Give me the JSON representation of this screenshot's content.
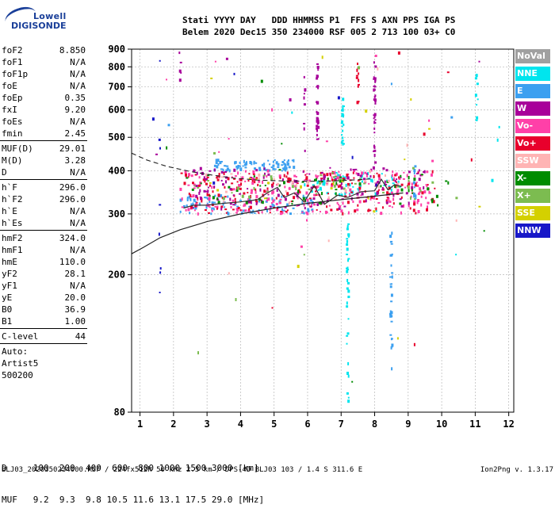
{
  "logo": {
    "line1": "Lowell",
    "line2": "DIGISONDE"
  },
  "header": {
    "line1": "Stati YYYY DAY   DDD HHMMSS P1  FFS S AXN PPS IGA PS",
    "line2": "Belem 2020 Dec15 350 234000 RSF 005 2 713 100 03+ C0"
  },
  "params": {
    "group1": [
      {
        "label": "foF2",
        "value": "8.850"
      },
      {
        "label": "foF1",
        "value": "N/A"
      },
      {
        "label": "foF1p",
        "value": "N/A"
      },
      {
        "label": "foE",
        "value": "N/A"
      },
      {
        "label": "foEp",
        "value": "0.35"
      },
      {
        "label": "fxI",
        "value": "9.20"
      },
      {
        "label": "foEs",
        "value": "N/A"
      },
      {
        "label": "fmin",
        "value": "2.45"
      }
    ],
    "group2": [
      {
        "label": "MUF(D)",
        "value": "29.01"
      },
      {
        "label": "M(D)",
        "value": "3.28"
      },
      {
        "label": "D",
        "value": "N/A"
      }
    ],
    "group3": [
      {
        "label": "h`F",
        "value": "296.0"
      },
      {
        "label": "h`F2",
        "value": "296.0"
      },
      {
        "label": "h`E",
        "value": "N/A"
      },
      {
        "label": "h`Es",
        "value": "N/A"
      }
    ],
    "group4": [
      {
        "label": "hmF2",
        "value": "324.0"
      },
      {
        "label": "hmF1",
        "value": "N/A"
      },
      {
        "label": "hmE",
        "value": "110.0"
      },
      {
        "label": "yF2",
        "value": "28.1"
      },
      {
        "label": "yF1",
        "value": "N/A"
      },
      {
        "label": "yE",
        "value": "20.0"
      },
      {
        "label": "B0",
        "value": "36.9"
      },
      {
        "label": "B1",
        "value": "1.00"
      }
    ],
    "group5": [
      {
        "label": "C-level",
        "value": "44"
      }
    ],
    "auto": [
      "Auto:",
      "Artist5",
      "500200"
    ]
  },
  "legend": [
    {
      "label": "NoVal",
      "color": "#a0a0a0"
    },
    {
      "label": "NNE",
      "color": "#00e5ee"
    },
    {
      "label": "E",
      "color": "#3ca0f0"
    },
    {
      "label": "W",
      "color": "#a8009a"
    },
    {
      "label": "Vo-",
      "color": "#ff40a8"
    },
    {
      "label": "Vo+",
      "color": "#e8002c"
    },
    {
      "label": "SSW",
      "color": "#ffb4b4"
    },
    {
      "label": "X-",
      "color": "#008c00"
    },
    {
      "label": "X+",
      "color": "#7cbc50"
    },
    {
      "label": "SSE",
      "color": "#d4d000"
    },
    {
      "label": "NNW",
      "color": "#1818c8"
    }
  ],
  "muf_table": {
    "line1": "D     100  200  400  600  800 1000 1500 3000 [km]",
    "line2": "MUF   9.2  9.3  9.8 10.5 11.6 13.1 17.5 29.0 [MHz]"
  },
  "footer": {
    "left": "BLJ03_2020350234000.RSF / 224fx512h 50 kHz 2.5 km / DPS-4D BLJ03 103 / 1.4 S 311.6 E",
    "right": "Ion2Png v. 1.3.17"
  },
  "chart_data": {
    "type": "scatter",
    "xlim": [
      0.75,
      12.15
    ],
    "ylim": [
      80,
      900
    ],
    "yscale": "log",
    "x_ticks": [
      1,
      2,
      3,
      4,
      5,
      6,
      7,
      8,
      9,
      10,
      11,
      12
    ],
    "y_ticks": [
      80,
      200,
      300,
      400,
      500,
      600,
      700,
      800,
      900
    ],
    "grid": true,
    "solid_profile": {
      "x": [
        0.75,
        1.1,
        1.6,
        2.2,
        3.0,
        4.0,
        5.0,
        6.0,
        7.0,
        7.8,
        8.4,
        8.85
      ],
      "y": [
        230,
        240,
        256,
        270,
        285,
        300,
        312,
        322,
        330,
        336,
        341,
        345
      ]
    },
    "dashed_profile": {
      "x": [
        0.75,
        1.2,
        1.8,
        2.5,
        3.2,
        3.8,
        4.5,
        5.2,
        6.0,
        6.8,
        7.3,
        7.9
      ],
      "y": [
        450,
        430,
        412,
        398,
        388,
        381,
        376,
        374,
        373,
        374,
        376,
        379
      ]
    },
    "trace": {
      "x": [
        2.3,
        2.6,
        3.0,
        3.5,
        4.0,
        4.5,
        4.8,
        5.1,
        5.3,
        5.6,
        5.9,
        6.2,
        6.5,
        6.9,
        7.2,
        7.6,
        8.0,
        8.2,
        8.4,
        8.6,
        8.8
      ],
      "y": [
        312,
        318,
        318,
        322,
        325,
        330,
        345,
        358,
        335,
        345,
        325,
        362,
        320,
        340,
        335,
        348,
        350,
        378,
        352,
        365,
        360
      ]
    },
    "echo_clusters": [
      {
        "color": "#3ca0f0",
        "x_range": [
          3.2,
          5.6
        ],
        "y_range": [
          400,
          430
        ],
        "count": 90
      },
      {
        "color": "#3ca0f0",
        "x_range": [
          2.2,
          6.2
        ],
        "y_range": [
          300,
          340
        ],
        "count": 90
      },
      {
        "color": "#00e5ee",
        "x_range": [
          5.8,
          8.8
        ],
        "y_range": [
          340,
          395
        ],
        "count": 60
      },
      {
        "color": "#ff40a8",
        "x_range": [
          2.2,
          9.8
        ],
        "y_range": [
          300,
          400
        ],
        "count": 230
      },
      {
        "color": "#e8002c",
        "x_range": [
          2.2,
          9.8
        ],
        "y_range": [
          300,
          395
        ],
        "count": 200
      },
      {
        "color": "#a8009a",
        "x_range": [
          2.5,
          9.5
        ],
        "y_range": [
          310,
          410
        ],
        "count": 130
      },
      {
        "color": "#008c00",
        "x_range": [
          2.4,
          10.2
        ],
        "y_range": [
          320,
          390
        ],
        "count": 60
      },
      {
        "color": "#7cbc50",
        "x_range": [
          2.5,
          10.5
        ],
        "y_range": [
          330,
          395
        ],
        "count": 40
      },
      {
        "color": "#ffb4b4",
        "x_range": [
          2.5,
          9.0
        ],
        "y_range": [
          320,
          400
        ],
        "count": 30
      },
      {
        "color": "#d4d000",
        "x_range": [
          3.0,
          8.5
        ],
        "y_range": [
          300,
          380
        ],
        "count": 12
      }
    ],
    "echo_columns": [
      {
        "color": "#a8009a",
        "x": 6.3,
        "y_range": [
          490,
          820
        ],
        "count": 30
      },
      {
        "color": "#a8009a",
        "x": 8.0,
        "y_range": [
          420,
          830
        ],
        "count": 35
      },
      {
        "color": "#00e5ee",
        "x": 7.05,
        "y_range": [
          460,
          650
        ],
        "count": 25
      },
      {
        "color": "#00e5ee",
        "x": 7.2,
        "y_range": [
          80,
          300
        ],
        "count": 40
      },
      {
        "color": "#3ca0f0",
        "x": 8.5,
        "y_range": [
          85,
          270
        ],
        "count": 30
      },
      {
        "color": "#e8002c",
        "x": 7.5,
        "y_range": [
          620,
          820
        ],
        "count": 12
      },
      {
        "color": "#a8009a",
        "x": 5.9,
        "y_range": [
          380,
          810
        ],
        "count": 10
      },
      {
        "color": "#1818c8",
        "x": 1.6,
        "y_range": [
          110,
          860
        ],
        "count": 8
      },
      {
        "color": "#a8009a",
        "x": 2.2,
        "y_range": [
          700,
          880
        ],
        "count": 6
      },
      {
        "color": "#00e5ee",
        "x": 11.05,
        "y_range": [
          550,
          800
        ],
        "count": 8
      },
      {
        "color": "#3ca0f0",
        "x": 9.2,
        "y_range": [
          320,
          420
        ],
        "count": 10
      }
    ],
    "scatter_noise": {
      "x_range": [
        1.3,
        11.8
      ],
      "y_range": [
        90,
        880
      ],
      "count": 70
    }
  }
}
